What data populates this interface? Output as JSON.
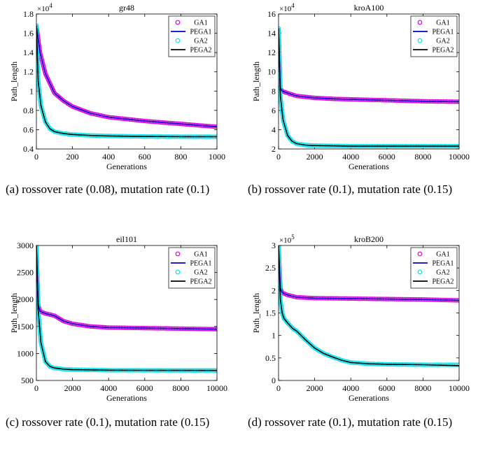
{
  "captions": [
    "(a) rossover rate (0.08), mutation rate (0.1)",
    "(b) rossover rate (0.1), mutation rate (0.15)",
    "(c) rossover rate (0.1), mutation rate (0.15)",
    "(d) rossover rate (0.1), mutation rate (0.15)"
  ],
  "series_styles": {
    "GA1": {
      "marker": "circle",
      "color": "#e000e0"
    },
    "PEGA1": {
      "line": "solid",
      "color": "#0000cc"
    },
    "GA2": {
      "marker": "circle",
      "color": "#00e5ee"
    },
    "PEGA2": {
      "line": "solid",
      "color": "#000000"
    }
  },
  "chart_data": [
    {
      "type": "line",
      "title": "gr48",
      "xlabel": "Generations",
      "ylabel": "Path_length",
      "exponent_label": "×10^4",
      "xlim": [
        0,
        1000
      ],
      "ylim": [
        0.4,
        1.8
      ],
      "xticks": [
        0,
        200,
        400,
        600,
        800,
        1000
      ],
      "xtick_labels": [
        "0",
        "200",
        "400",
        "600",
        "800",
        "1000"
      ],
      "yticks": [
        0.4,
        0.6,
        0.8,
        1.0,
        1.2,
        1.4,
        1.6,
        1.8
      ],
      "ytick_labels": [
        "0.4",
        "0.6",
        "0.8",
        "1",
        "1.2",
        "1.4",
        "1.6",
        "1.8"
      ],
      "legend": [
        "GA1",
        "PEGA1",
        "GA2",
        "PEGA2"
      ],
      "legend_position": "top-right",
      "series": [
        {
          "name": "GA1",
          "x": [
            0,
            20,
            50,
            100,
            150,
            200,
            300,
            400,
            500,
            600,
            700,
            800,
            900,
            1000
          ],
          "y": [
            1.68,
            1.4,
            1.18,
            0.98,
            0.9,
            0.84,
            0.77,
            0.73,
            0.71,
            0.69,
            0.675,
            0.66,
            0.645,
            0.63
          ]
        },
        {
          "name": "PEGA1",
          "x": [
            0,
            20,
            50,
            100,
            150,
            200,
            300,
            400,
            500,
            600,
            700,
            800,
            900,
            1000
          ],
          "y": [
            1.68,
            1.4,
            1.18,
            0.98,
            0.9,
            0.84,
            0.77,
            0.73,
            0.71,
            0.69,
            0.675,
            0.66,
            0.645,
            0.63
          ]
        },
        {
          "name": "GA2",
          "x": [
            0,
            10,
            25,
            50,
            75,
            100,
            150,
            200,
            300,
            400,
            600,
            800,
            1000
          ],
          "y": [
            1.68,
            1.1,
            0.85,
            0.68,
            0.61,
            0.58,
            0.56,
            0.55,
            0.54,
            0.535,
            0.53,
            0.528,
            0.527
          ]
        },
        {
          "name": "PEGA2",
          "x": [
            0,
            10,
            25,
            50,
            75,
            100,
            150,
            200,
            300,
            400,
            600,
            800,
            1000
          ],
          "y": [
            1.68,
            1.1,
            0.85,
            0.68,
            0.61,
            0.58,
            0.56,
            0.55,
            0.54,
            0.535,
            0.53,
            0.528,
            0.527
          ]
        }
      ]
    },
    {
      "type": "line",
      "title": "kroA100",
      "xlabel": "Generations",
      "ylabel": "Path_length",
      "exponent_label": "×10^4",
      "xlim": [
        0,
        10000
      ],
      "ylim": [
        2,
        16
      ],
      "xticks": [
        0,
        2000,
        4000,
        6000,
        8000,
        10000
      ],
      "xtick_labels": [
        "0",
        "2000",
        "4000",
        "6000",
        "8000",
        "10000"
      ],
      "yticks": [
        2,
        4,
        6,
        8,
        10,
        12,
        14,
        16
      ],
      "ytick_labels": [
        "2",
        "4",
        "6",
        "8",
        "10",
        "12",
        "14",
        "16"
      ],
      "legend": [
        "GA1",
        "PEGA1",
        "GA2",
        "PEGA2"
      ],
      "legend_position": "top-right",
      "series": [
        {
          "name": "GA1",
          "x": [
            0,
            100,
            200,
            500,
            1000,
            2000,
            3000,
            4000,
            6000,
            8000,
            10000
          ],
          "y": [
            14.5,
            8.3,
            8.0,
            7.8,
            7.5,
            7.3,
            7.2,
            7.15,
            7.05,
            6.95,
            6.9
          ]
        },
        {
          "name": "PEGA1",
          "x": [
            0,
            100,
            200,
            500,
            1000,
            2000,
            3000,
            4000,
            6000,
            8000,
            10000
          ],
          "y": [
            14.5,
            8.3,
            8.0,
            7.8,
            7.5,
            7.3,
            7.2,
            7.15,
            7.05,
            6.95,
            6.9
          ]
        },
        {
          "name": "GA2",
          "x": [
            0,
            100,
            250,
            500,
            750,
            1000,
            1500,
            2000,
            3000,
            4000,
            6000,
            8000,
            10000
          ],
          "y": [
            14.5,
            7.5,
            5.0,
            3.4,
            2.8,
            2.55,
            2.4,
            2.35,
            2.32,
            2.3,
            2.3,
            2.3,
            2.3
          ]
        },
        {
          "name": "PEGA2",
          "x": [
            0,
            100,
            250,
            500,
            750,
            1000,
            1500,
            2000,
            3000,
            4000,
            6000,
            8000,
            10000
          ],
          "y": [
            14.5,
            7.5,
            5.0,
            3.4,
            2.8,
            2.55,
            2.4,
            2.35,
            2.32,
            2.3,
            2.3,
            2.3,
            2.3
          ]
        }
      ]
    },
    {
      "type": "line",
      "title": "eil101",
      "xlabel": "Generations",
      "ylabel": "Path_length",
      "exponent_label": "",
      "xlim": [
        0,
        10000
      ],
      "ylim": [
        500,
        3000
      ],
      "xticks": [
        0,
        2000,
        4000,
        6000,
        8000,
        10000
      ],
      "xtick_labels": [
        "0",
        "2000",
        "4000",
        "6000",
        "8000",
        "10000"
      ],
      "yticks": [
        500,
        1000,
        1500,
        2000,
        2500,
        3000
      ],
      "ytick_labels": [
        "500",
        "1000",
        "1500",
        "2000",
        "2500",
        "3000"
      ],
      "legend": [
        "GA1",
        "PEGA1",
        "GA2",
        "PEGA2"
      ],
      "legend_position": "top-right",
      "series": [
        {
          "name": "GA1",
          "x": [
            0,
            100,
            200,
            500,
            1000,
            1500,
            2000,
            3000,
            4000,
            6000,
            8000,
            10000
          ],
          "y": [
            3000,
            1900,
            1780,
            1740,
            1700,
            1600,
            1550,
            1500,
            1480,
            1470,
            1460,
            1450
          ]
        },
        {
          "name": "PEGA1",
          "x": [
            0,
            100,
            200,
            500,
            1000,
            1500,
            2000,
            3000,
            4000,
            6000,
            8000,
            10000
          ],
          "y": [
            3000,
            1900,
            1780,
            1740,
            1700,
            1600,
            1550,
            1500,
            1480,
            1470,
            1460,
            1450
          ]
        },
        {
          "name": "GA2",
          "x": [
            0,
            100,
            250,
            500,
            750,
            1000,
            1500,
            2000,
            3000,
            4000,
            6000,
            8000,
            10000
          ],
          "y": [
            3000,
            1800,
            1200,
            850,
            760,
            730,
            710,
            700,
            695,
            690,
            688,
            686,
            685
          ]
        },
        {
          "name": "PEGA2",
          "x": [
            0,
            100,
            250,
            500,
            750,
            1000,
            1500,
            2000,
            3000,
            4000,
            6000,
            8000,
            10000
          ],
          "y": [
            3000,
            1800,
            1200,
            850,
            760,
            730,
            710,
            700,
            695,
            690,
            688,
            686,
            685
          ]
        }
      ]
    },
    {
      "type": "line",
      "title": "kroB200",
      "xlabel": "Generations",
      "ylabel": "Path_length",
      "exponent_label": "×10^5",
      "xlim": [
        0,
        10000
      ],
      "ylim": [
        0,
        3
      ],
      "xticks": [
        0,
        2000,
        4000,
        6000,
        8000,
        10000
      ],
      "xtick_labels": [
        "0",
        "2000",
        "4000",
        "6000",
        "8000",
        "10000"
      ],
      "yticks": [
        0,
        0.5,
        1.0,
        1.5,
        2.0,
        2.5,
        3.0
      ],
      "ytick_labels": [
        "0",
        "0.5",
        "1",
        "1.5",
        "2",
        "2.5",
        "3"
      ],
      "legend": [
        "GA1",
        "PEGA1",
        "GA2",
        "PEGA2"
      ],
      "legend_position": "top-right",
      "series": [
        {
          "name": "GA1",
          "x": [
            0,
            100,
            200,
            500,
            1000,
            2000,
            4000,
            6000,
            8000,
            10000
          ],
          "y": [
            3.0,
            2.05,
            1.95,
            1.9,
            1.85,
            1.83,
            1.82,
            1.81,
            1.8,
            1.78
          ]
        },
        {
          "name": "PEGA1",
          "x": [
            0,
            100,
            200,
            500,
            1000,
            2000,
            4000,
            6000,
            8000,
            10000
          ],
          "y": [
            3.0,
            2.05,
            1.95,
            1.9,
            1.85,
            1.83,
            1.82,
            1.81,
            1.8,
            1.78
          ]
        },
        {
          "name": "GA2",
          "x": [
            0,
            100,
            200,
            300,
            500,
            800,
            1000,
            1500,
            2000,
            2500,
            3000,
            3500,
            4000,
            5000,
            6000,
            8000,
            10000
          ],
          "y": [
            3.0,
            1.8,
            1.5,
            1.38,
            1.28,
            1.15,
            1.1,
            0.9,
            0.72,
            0.6,
            0.52,
            0.45,
            0.4,
            0.37,
            0.36,
            0.35,
            0.35
          ]
        },
        {
          "name": "PEGA2",
          "x": [
            0,
            100,
            200,
            300,
            500,
            800,
            1000,
            1500,
            2000,
            2500,
            3000,
            3500,
            4000,
            5000,
            6000,
            8000,
            10000
          ],
          "y": [
            3.0,
            1.8,
            1.5,
            1.38,
            1.28,
            1.15,
            1.1,
            0.9,
            0.72,
            0.6,
            0.52,
            0.45,
            0.4,
            0.37,
            0.36,
            0.35,
            0.33
          ]
        }
      ]
    }
  ]
}
